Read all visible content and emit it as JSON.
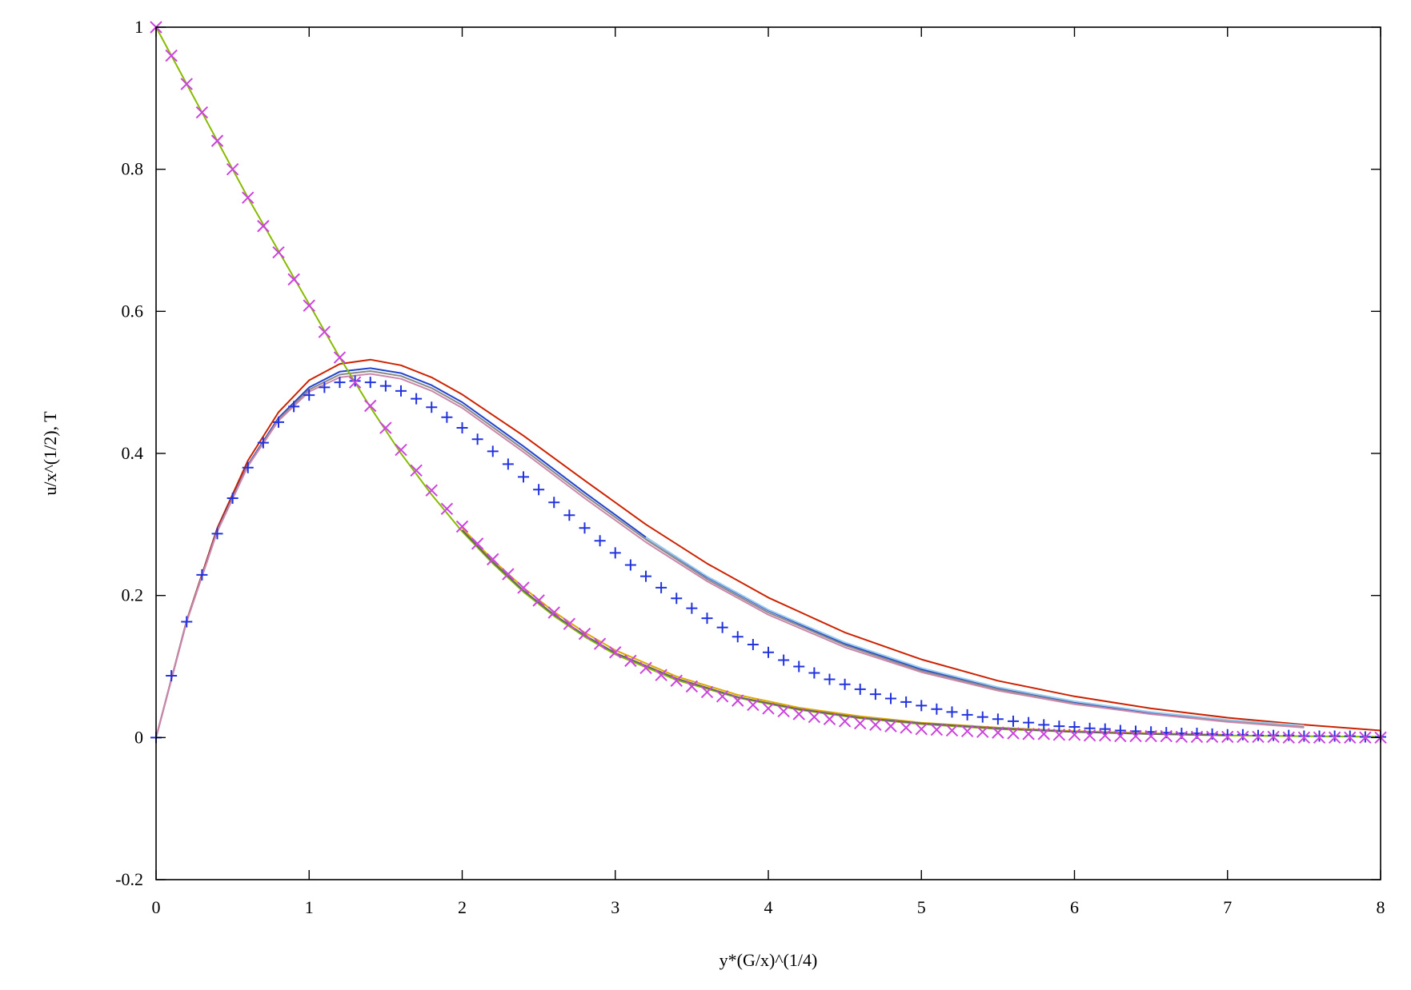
{
  "chart_data": {
    "type": "line",
    "title": "",
    "xlabel": "y*(G/x)^(1/4)",
    "ylabel": "u/x^(1/2),   T",
    "xlim": [
      0,
      8
    ],
    "ylim": [
      -0.2,
      1
    ],
    "x_ticks": [
      "0",
      "1",
      "2",
      "3",
      "4",
      "5",
      "6",
      "7",
      "8"
    ],
    "y_ticks": [
      "-0.2",
      "0",
      "0.2",
      "0.4",
      "0.6",
      "0.8",
      "1"
    ],
    "grid": false,
    "legend": "none",
    "series": [
      {
        "style": "line",
        "color": "#cc2200",
        "x": [
          0,
          0.2,
          0.4,
          0.6,
          0.8,
          1.0,
          1.2,
          1.4,
          1.6,
          1.8,
          2.0,
          2.4,
          2.8,
          3.2,
          3.6,
          4.0,
          4.5,
          5.0,
          5.5,
          6.0,
          6.5,
          7.0,
          7.5,
          8.0
        ],
        "y": [
          0,
          0.165,
          0.295,
          0.39,
          0.458,
          0.503,
          0.526,
          0.532,
          0.524,
          0.507,
          0.483,
          0.425,
          0.362,
          0.3,
          0.245,
          0.197,
          0.148,
          0.11,
          0.08,
          0.058,
          0.041,
          0.028,
          0.018,
          0.01
        ]
      },
      {
        "style": "line",
        "color": "#2244cc",
        "x": [
          0,
          0.2,
          0.4,
          0.6,
          0.8,
          1.0,
          1.2,
          1.4,
          1.6,
          1.8,
          2.0,
          2.4,
          2.8,
          3.2,
          3.6,
          4.0,
          4.5,
          5.0,
          5.5,
          6.0,
          6.5,
          7.0,
          7.5
        ],
        "y": [
          0,
          0.164,
          0.292,
          0.384,
          0.45,
          0.493,
          0.515,
          0.52,
          0.513,
          0.496,
          0.472,
          0.41,
          0.345,
          0.282,
          0.226,
          0.179,
          0.132,
          0.096,
          0.069,
          0.049,
          0.034,
          0.023,
          0.015
        ]
      },
      {
        "style": "line",
        "color": "#888888",
        "x": [
          0,
          0.2,
          0.4,
          0.6,
          0.8,
          1.0,
          1.2,
          1.4,
          1.6,
          1.8,
          2.0,
          2.4,
          2.8,
          3.2,
          3.6,
          4.0,
          4.5,
          5.0,
          5.5,
          6.0,
          6.5,
          7.0,
          7.5
        ],
        "y": [
          0,
          0.164,
          0.291,
          0.383,
          0.448,
          0.49,
          0.511,
          0.516,
          0.509,
          0.492,
          0.468,
          0.406,
          0.341,
          0.279,
          0.223,
          0.176,
          0.13,
          0.094,
          0.068,
          0.048,
          0.033,
          0.023,
          0.015
        ]
      },
      {
        "style": "line",
        "color": "#cc88aa",
        "x": [
          0,
          0.2,
          0.4,
          0.6,
          0.8,
          1.0,
          1.2,
          1.4,
          1.6,
          1.8,
          2.0,
          2.4,
          2.8,
          3.2,
          3.6,
          4.0,
          4.5,
          5.0,
          5.5,
          6.0,
          6.5,
          7.0,
          7.5
        ],
        "y": [
          0,
          0.163,
          0.29,
          0.382,
          0.446,
          0.487,
          0.507,
          0.512,
          0.505,
          0.488,
          0.464,
          0.402,
          0.337,
          0.275,
          0.22,
          0.173,
          0.127,
          0.092,
          0.066,
          0.047,
          0.033,
          0.022,
          0.014
        ]
      },
      {
        "style": "line",
        "color": "#99ccee",
        "x": [
          3.2,
          3.6,
          4.0,
          4.5,
          5.0,
          5.5,
          6.0,
          6.5,
          7.0,
          7.5
        ],
        "y": [
          0.282,
          0.227,
          0.18,
          0.134,
          0.098,
          0.071,
          0.051,
          0.036,
          0.025,
          0.017
        ]
      },
      {
        "style": "line",
        "color": "#88bb00",
        "x": [
          0,
          0.2,
          0.4,
          0.6,
          0.8,
          1.0,
          1.2,
          1.4,
          1.6,
          1.8,
          2.0,
          2.2,
          2.4,
          2.6,
          2.8,
          3.0,
          3.4,
          3.8,
          4.2,
          4.6,
          5.0,
          5.5,
          6.0,
          6.5,
          7.0,
          7.5,
          8.0
        ],
        "y": [
          1,
          0.92,
          0.84,
          0.76,
          0.685,
          0.61,
          0.535,
          0.465,
          0.4,
          0.342,
          0.29,
          0.245,
          0.205,
          0.171,
          0.142,
          0.117,
          0.081,
          0.056,
          0.039,
          0.027,
          0.019,
          0.012,
          0.008,
          0.005,
          0.003,
          0.002,
          0.001
        ]
      },
      {
        "style": "line",
        "color": "#ddaa00",
        "x": [
          2.0,
          2.2,
          2.4,
          2.6,
          2.8,
          3.0,
          3.4,
          3.8,
          4.2,
          4.6,
          5.0,
          5.5,
          6.0,
          6.5,
          7.0
        ],
        "y": [
          0.295,
          0.25,
          0.211,
          0.177,
          0.148,
          0.123,
          0.086,
          0.06,
          0.042,
          0.03,
          0.021,
          0.014,
          0.009,
          0.006,
          0.004
        ]
      },
      {
        "style": "line",
        "color": "#666666",
        "x": [
          2.0,
          2.2,
          2.4,
          2.6,
          2.8,
          3.0,
          3.4,
          3.8,
          4.2,
          4.6,
          5.0,
          5.5,
          6.0,
          6.5,
          7.0
        ],
        "y": [
          0.292,
          0.247,
          0.207,
          0.173,
          0.144,
          0.119,
          0.083,
          0.057,
          0.04,
          0.028,
          0.02,
          0.013,
          0.008,
          0.005,
          0.003
        ]
      },
      {
        "style": "marker",
        "marker": "plus",
        "color": "#2233dd",
        "x": [
          0,
          0.1,
          0.2,
          0.3,
          0.4,
          0.5,
          0.6,
          0.7,
          0.8,
          0.9,
          1.0,
          1.1,
          1.2,
          1.3,
          1.4,
          1.5,
          1.6,
          1.7,
          1.8,
          1.9,
          2.0,
          2.1,
          2.2,
          2.3,
          2.4,
          2.5,
          2.6,
          2.7,
          2.8,
          2.9,
          3.0,
          3.1,
          3.2,
          3.3,
          3.4,
          3.5,
          3.6,
          3.7,
          3.8,
          3.9,
          4.0,
          4.1,
          4.2,
          4.3,
          4.4,
          4.5,
          4.6,
          4.7,
          4.8,
          4.9,
          5.0,
          5.1,
          5.2,
          5.3,
          5.4,
          5.5,
          5.6,
          5.7,
          5.8,
          5.9,
          6.0,
          6.1,
          6.2,
          6.3,
          6.4,
          6.5,
          6.6,
          6.7,
          6.8,
          6.9,
          7.0,
          7.1,
          7.2,
          7.3,
          7.4,
          7.5,
          7.6,
          7.7,
          7.8,
          7.9,
          8.0
        ],
        "y": [
          0,
          0.087,
          0.163,
          0.229,
          0.287,
          0.337,
          0.38,
          0.415,
          0.444,
          0.466,
          0.482,
          0.493,
          0.5,
          0.502,
          0.5,
          0.495,
          0.488,
          0.477,
          0.465,
          0.451,
          0.436,
          0.42,
          0.403,
          0.385,
          0.367,
          0.349,
          0.331,
          0.313,
          0.295,
          0.277,
          0.26,
          0.243,
          0.227,
          0.211,
          0.196,
          0.182,
          0.168,
          0.155,
          0.142,
          0.131,
          0.12,
          0.109,
          0.1,
          0.091,
          0.082,
          0.075,
          0.068,
          0.061,
          0.055,
          0.05,
          0.045,
          0.04,
          0.036,
          0.032,
          0.029,
          0.026,
          0.023,
          0.021,
          0.018,
          0.016,
          0.015,
          0.013,
          0.012,
          0.01,
          0.009,
          0.008,
          0.007,
          0.006,
          0.006,
          0.005,
          0.004,
          0.004,
          0.003,
          0.003,
          0.003,
          0.002,
          0.002,
          0.002,
          0.002,
          0.001,
          0.001
        ]
      },
      {
        "style": "marker",
        "marker": "cross",
        "color": "#cc44dd",
        "x": [
          0,
          0.1,
          0.2,
          0.3,
          0.4,
          0.5,
          0.6,
          0.7,
          0.8,
          0.9,
          1.0,
          1.1,
          1.2,
          1.3,
          1.4,
          1.5,
          1.6,
          1.7,
          1.8,
          1.9,
          2.0,
          2.1,
          2.2,
          2.3,
          2.4,
          2.5,
          2.6,
          2.7,
          2.8,
          2.9,
          3.0,
          3.1,
          3.2,
          3.3,
          3.4,
          3.5,
          3.6,
          3.7,
          3.8,
          3.9,
          4.0,
          4.1,
          4.2,
          4.3,
          4.4,
          4.5,
          4.6,
          4.7,
          4.8,
          4.9,
          5.0,
          5.1,
          5.2,
          5.3,
          5.4,
          5.5,
          5.6,
          5.7,
          5.8,
          5.9,
          6.0,
          6.1,
          6.2,
          6.3,
          6.4,
          6.5,
          6.6,
          6.7,
          6.8,
          6.9,
          7.0,
          7.1,
          7.2,
          7.3,
          7.4,
          7.5,
          7.6,
          7.7,
          7.8,
          7.9,
          8.0
        ],
        "y": [
          1,
          0.96,
          0.92,
          0.88,
          0.84,
          0.8,
          0.76,
          0.72,
          0.683,
          0.645,
          0.608,
          0.571,
          0.535,
          0.5,
          0.467,
          0.436,
          0.405,
          0.376,
          0.348,
          0.322,
          0.297,
          0.273,
          0.251,
          0.23,
          0.211,
          0.193,
          0.176,
          0.16,
          0.146,
          0.132,
          0.12,
          0.108,
          0.098,
          0.088,
          0.08,
          0.072,
          0.064,
          0.058,
          0.052,
          0.046,
          0.041,
          0.037,
          0.033,
          0.029,
          0.026,
          0.023,
          0.02,
          0.018,
          0.016,
          0.014,
          0.012,
          0.011,
          0.01,
          0.009,
          0.008,
          0.007,
          0.006,
          0.005,
          0.005,
          0.004,
          0.004,
          0.003,
          0.003,
          0.002,
          0.002,
          0.002,
          0.002,
          0.001,
          0.001,
          0.001,
          0.001,
          0.001,
          0.001,
          0.001,
          0,
          0,
          0,
          0,
          0,
          0,
          0
        ]
      }
    ]
  }
}
